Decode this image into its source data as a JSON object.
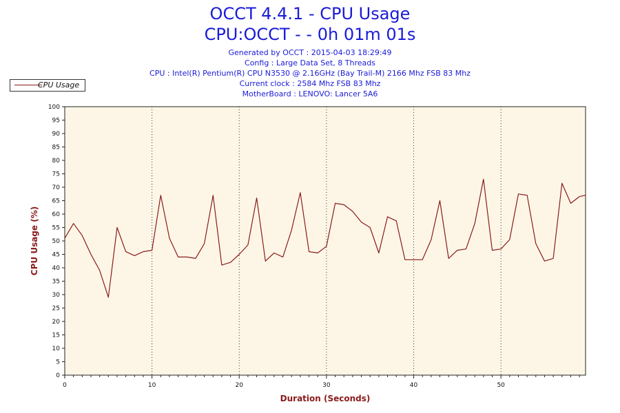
{
  "header": {
    "title_line1": "OCCT 4.4.1 - CPU Usage",
    "title_line2": "CPU:OCCT -  - 0h 01m 01s"
  },
  "info": {
    "generated": "Generated by OCCT : 2015-04-03 18:29:49",
    "config": "Config : Large Data Set, 8 Threads",
    "cpu": "CPU : Intel(R) Pentium(R) CPU N3530 @ 2.16GHz (Bay Trail-M) 2166 Mhz FSB 83 Mhz",
    "clock": "Current clock : 2584 Mhz FSB 83 Mhz",
    "motherboard": "MotherBoard : LENOVO: Lancer 5A6"
  },
  "colors": {
    "title": "#1a1ad8",
    "line": "#8b1a1a",
    "plot_bg": "#fdf6e6",
    "axis_label": "#8b1a1a"
  },
  "chart_data": {
    "type": "line",
    "xlabel": "Duration (Seconds)",
    "ylabel": "CPU Usage (%)",
    "xlim": [
      0,
      59.7
    ],
    "ylim": [
      0,
      100
    ],
    "x_ticks": [
      0,
      10,
      20,
      30,
      40,
      50
    ],
    "y_ticks": [
      0,
      5,
      10,
      15,
      20,
      25,
      30,
      35,
      40,
      45,
      50,
      55,
      60,
      65,
      70,
      75,
      80,
      85,
      90,
      95,
      100
    ],
    "grid": "vertical dotted lines at x = 10, 20, 30, 40, 50",
    "legend_position": "top-left",
    "series": [
      {
        "name": "CPU Usage",
        "x": [
          0,
          1,
          2,
          3,
          4,
          5,
          6,
          7,
          8,
          9,
          10,
          11,
          12,
          13,
          14,
          15,
          16,
          17,
          18,
          19,
          20,
          21,
          22,
          23,
          24,
          25,
          26,
          27,
          28,
          29,
          30,
          31,
          32,
          33,
          34,
          35,
          36,
          37,
          38,
          39,
          40,
          41,
          42,
          43,
          44,
          45,
          46,
          47,
          48,
          49,
          50,
          51,
          52,
          53,
          54,
          55,
          56,
          57,
          58,
          59,
          59.7
        ],
        "values": [
          51,
          56.5,
          52,
          45,
          39,
          29,
          55,
          46,
          44.5,
          46,
          46.5,
          67,
          51,
          44,
          44,
          43.5,
          49,
          67,
          41,
          42,
          45,
          48.5,
          66,
          42.5,
          45.5,
          44,
          54,
          68,
          46,
          45.5,
          48,
          64,
          63.5,
          61,
          57,
          55,
          45.5,
          59,
          57.5,
          43,
          43,
          43,
          50.5,
          65,
          43.5,
          46.5,
          47,
          56.5,
          73,
          46.5,
          47,
          50.5,
          67.5,
          67,
          49,
          42.5,
          43.5,
          71.5,
          64,
          66.5,
          67
        ]
      }
    ]
  }
}
